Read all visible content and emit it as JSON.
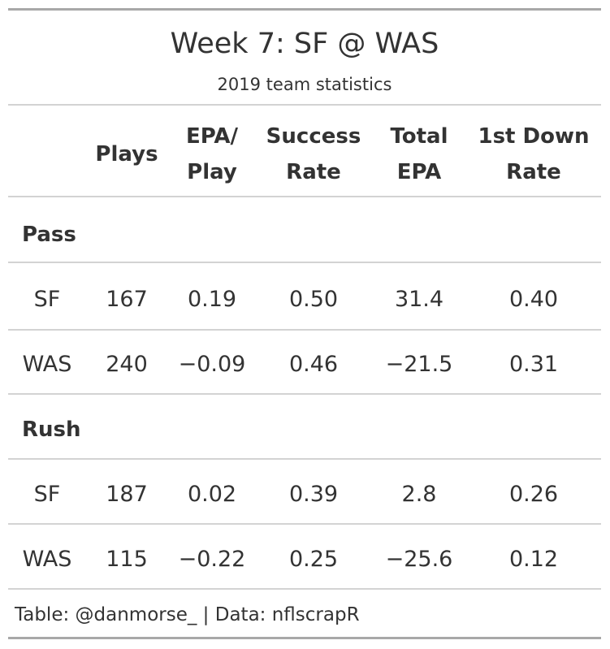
{
  "chart_data": {
    "type": "table",
    "title": "Week 7: SF @ WAS",
    "subtitle": "2019 team statistics",
    "columns": [
      {
        "key": "team",
        "label_lines": [
          "",
          ""
        ]
      },
      {
        "key": "plays",
        "label_lines": [
          "Plays"
        ]
      },
      {
        "key": "epa_play",
        "label_lines": [
          "EPA/",
          "Play"
        ]
      },
      {
        "key": "success_rate",
        "label_lines": [
          "Success",
          "Rate"
        ]
      },
      {
        "key": "total_epa",
        "label_lines": [
          "Total",
          "EPA"
        ]
      },
      {
        "key": "first_down_rate",
        "label_lines": [
          "1st Down",
          "Rate"
        ]
      }
    ],
    "groups": [
      {
        "label": "Pass",
        "rows": [
          {
            "team": "SF",
            "plays": "167",
            "epa_play": "0.19",
            "success_rate": "0.50",
            "total_epa": "31.4",
            "first_down_rate": "0.40"
          },
          {
            "team": "WAS",
            "plays": "240",
            "epa_play": "−0.09",
            "success_rate": "0.46",
            "total_epa": "−21.5",
            "first_down_rate": "0.31"
          }
        ]
      },
      {
        "label": "Rush",
        "rows": [
          {
            "team": "SF",
            "plays": "187",
            "epa_play": "0.02",
            "success_rate": "0.39",
            "total_epa": "2.8",
            "first_down_rate": "0.26"
          },
          {
            "team": "WAS",
            "plays": "115",
            "epa_play": "−0.22",
            "success_rate": "0.25",
            "total_epa": "−25.6",
            "first_down_rate": "0.12"
          }
        ]
      }
    ],
    "source_note": "Table: @danmorse_ | Data: nflscrapR"
  }
}
